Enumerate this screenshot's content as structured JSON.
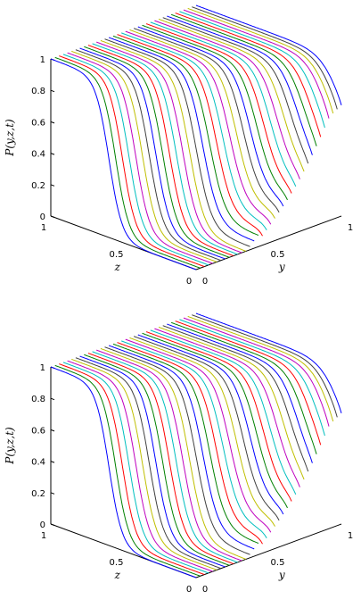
{
  "chart_data": [
    {
      "type": "line",
      "title": "",
      "xlabel": "y",
      "ylabel": "z",
      "zlabel": "P(y,z,t)",
      "xlim": [
        0,
        1
      ],
      "ylim": [
        0,
        1
      ],
      "zlim": [
        0,
        1
      ],
      "x_ticks": [
        "0",
        "0.5",
        "1"
      ],
      "y_ticks": [
        "0",
        "0.5",
        "1"
      ],
      "z_ticks": [
        "0",
        "0.2",
        "0.4",
        "0.6",
        "0.8",
        "1"
      ],
      "grid": false,
      "num_series": 36,
      "series_description": "Each curve is P at a fixed y (0 to 1); P is 1 at z=1 and drops steeply toward 0 near a front that moves to lower z as y increases.",
      "colors": [
        "#0000ff",
        "#008000",
        "#ff0000",
        "#00bfbf",
        "#bf00bf",
        "#bfbf00",
        "#404040"
      ]
    },
    {
      "type": "line",
      "title": "",
      "xlabel": "y",
      "ylabel": "z",
      "zlabel": "P(y,z,t)",
      "xlim": [
        0,
        1
      ],
      "ylim": [
        0,
        1
      ],
      "zlim": [
        0,
        1
      ],
      "x_ticks": [
        "0",
        "0.5",
        "1"
      ],
      "y_ticks": [
        "0",
        "0.5",
        "1"
      ],
      "z_ticks": [
        "0",
        "0.2",
        "0.4",
        "0.6",
        "0.8",
        "1"
      ],
      "grid": false,
      "num_series": 36,
      "series_description": "Each curve is P at a fixed y (0 to 1); P is 1 at z=1 and drops steeply toward 0 near a front that moves to lower z as y increases.",
      "colors": [
        "#0000ff",
        "#008000",
        "#ff0000",
        "#00bfbf",
        "#bf00bf",
        "#bfbf00",
        "#404040"
      ]
    }
  ]
}
